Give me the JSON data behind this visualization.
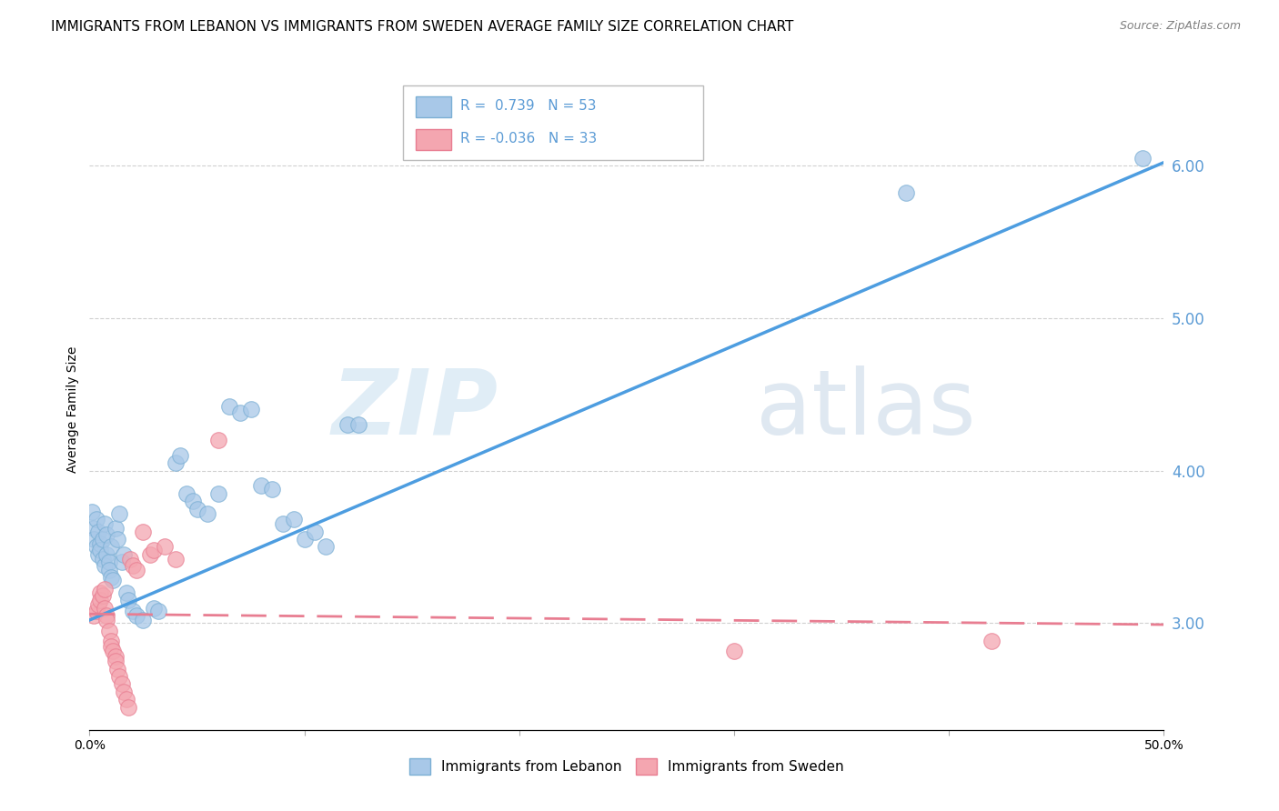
{
  "title": "IMMIGRANTS FROM LEBANON VS IMMIGRANTS FROM SWEDEN AVERAGE FAMILY SIZE CORRELATION CHART",
  "source": "Source: ZipAtlas.com",
  "ylabel": "Average Family Size",
  "watermark": "ZIPatlas",
  "xlim": [
    0.0,
    0.5
  ],
  "ylim": [
    2.3,
    6.5
  ],
  "yticks": [
    3.0,
    4.0,
    5.0,
    6.0
  ],
  "ytick_color": "#5b9bd5",
  "lebanon_color": "#a8c8e8",
  "lebanon_edge": "#7bafd4",
  "sweden_color": "#f4a6b0",
  "sweden_edge": "#e87d91",
  "lebanon_line_color": "#4d9de0",
  "sweden_line_color": "#e87d91",
  "background_color": "#ffffff",
  "grid_color": "#d0d0d0",
  "lebanon_scatter": [
    [
      0.001,
      3.73
    ],
    [
      0.002,
      3.62
    ],
    [
      0.002,
      3.55
    ],
    [
      0.003,
      3.68
    ],
    [
      0.003,
      3.5
    ],
    [
      0.004,
      3.45
    ],
    [
      0.004,
      3.6
    ],
    [
      0.005,
      3.52
    ],
    [
      0.005,
      3.48
    ],
    [
      0.006,
      3.55
    ],
    [
      0.006,
      3.42
    ],
    [
      0.007,
      3.38
    ],
    [
      0.007,
      3.65
    ],
    [
      0.008,
      3.58
    ],
    [
      0.008,
      3.45
    ],
    [
      0.009,
      3.4
    ],
    [
      0.009,
      3.35
    ],
    [
      0.01,
      3.5
    ],
    [
      0.01,
      3.3
    ],
    [
      0.011,
      3.28
    ],
    [
      0.012,
      3.62
    ],
    [
      0.013,
      3.55
    ],
    [
      0.014,
      3.72
    ],
    [
      0.015,
      3.4
    ],
    [
      0.016,
      3.45
    ],
    [
      0.017,
      3.2
    ],
    [
      0.018,
      3.15
    ],
    [
      0.02,
      3.08
    ],
    [
      0.022,
      3.05
    ],
    [
      0.025,
      3.02
    ],
    [
      0.03,
      3.1
    ],
    [
      0.032,
      3.08
    ],
    [
      0.04,
      4.05
    ],
    [
      0.042,
      4.1
    ],
    [
      0.045,
      3.85
    ],
    [
      0.048,
      3.8
    ],
    [
      0.05,
      3.75
    ],
    [
      0.055,
      3.72
    ],
    [
      0.06,
      3.85
    ],
    [
      0.065,
      4.42
    ],
    [
      0.07,
      4.38
    ],
    [
      0.075,
      4.4
    ],
    [
      0.08,
      3.9
    ],
    [
      0.085,
      3.88
    ],
    [
      0.09,
      3.65
    ],
    [
      0.095,
      3.68
    ],
    [
      0.1,
      3.55
    ],
    [
      0.105,
      3.6
    ],
    [
      0.11,
      3.5
    ],
    [
      0.12,
      4.3
    ],
    [
      0.125,
      4.3
    ],
    [
      0.38,
      5.82
    ],
    [
      0.49,
      6.05
    ]
  ],
  "sweden_scatter": [
    [
      0.002,
      3.05
    ],
    [
      0.003,
      3.08
    ],
    [
      0.004,
      3.12
    ],
    [
      0.005,
      3.2
    ],
    [
      0.005,
      3.15
    ],
    [
      0.006,
      3.18
    ],
    [
      0.007,
      3.22
    ],
    [
      0.007,
      3.1
    ],
    [
      0.008,
      3.05
    ],
    [
      0.008,
      3.02
    ],
    [
      0.009,
      2.95
    ],
    [
      0.01,
      2.88
    ],
    [
      0.01,
      2.85
    ],
    [
      0.011,
      2.82
    ],
    [
      0.012,
      2.78
    ],
    [
      0.012,
      2.75
    ],
    [
      0.013,
      2.7
    ],
    [
      0.014,
      2.65
    ],
    [
      0.015,
      2.6
    ],
    [
      0.016,
      2.55
    ],
    [
      0.017,
      2.5
    ],
    [
      0.018,
      2.45
    ],
    [
      0.019,
      3.42
    ],
    [
      0.02,
      3.38
    ],
    [
      0.022,
      3.35
    ],
    [
      0.025,
      3.6
    ],
    [
      0.028,
      3.45
    ],
    [
      0.03,
      3.48
    ],
    [
      0.035,
      3.5
    ],
    [
      0.04,
      3.42
    ],
    [
      0.06,
      4.2
    ],
    [
      0.42,
      2.88
    ],
    [
      0.3,
      2.82
    ]
  ],
  "leb_line_x": [
    0.0,
    0.5
  ],
  "leb_line_y": [
    3.02,
    6.02
  ],
  "swe_line_x": [
    0.0,
    0.5
  ],
  "swe_line_y": [
    3.06,
    2.99
  ],
  "title_fontsize": 11,
  "axis_label_fontsize": 10,
  "tick_fontsize": 10
}
